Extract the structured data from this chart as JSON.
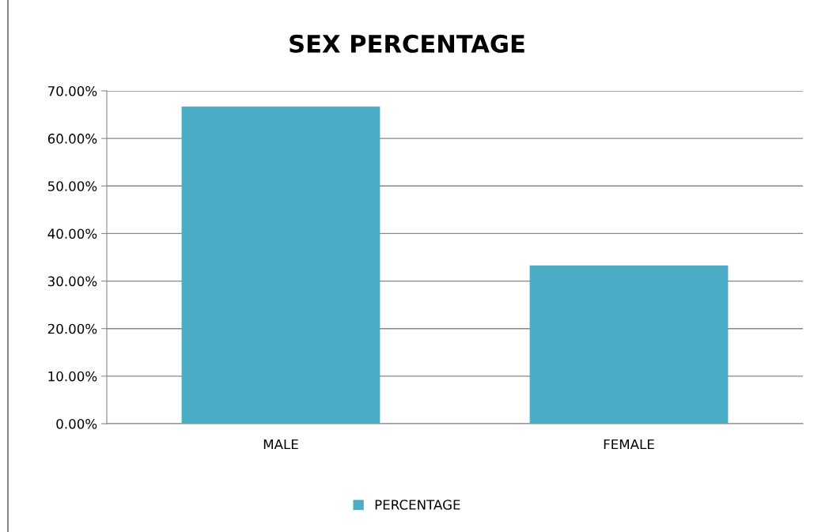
{
  "chart_data": {
    "type": "bar",
    "title": "SEX PERCENTAGE",
    "categories": [
      "MALE",
      "FEMALE"
    ],
    "series": [
      {
        "name": "PERCENTAGE",
        "color": "#4bacc6",
        "values": [
          66.7,
          33.3
        ]
      }
    ],
    "ylim": [
      0,
      70
    ],
    "yticks": [
      {
        "value": 0,
        "label": "0.00%"
      },
      {
        "value": 10,
        "label": "10.00%"
      },
      {
        "value": 20,
        "label": "20.00%"
      },
      {
        "value": 30,
        "label": "30.00%"
      },
      {
        "value": 40,
        "label": "40.00%"
      },
      {
        "value": 50,
        "label": "50.00%"
      },
      {
        "value": 60,
        "label": "60.00%"
      },
      {
        "value": 70,
        "label": "70.00%"
      }
    ],
    "grid": "y",
    "legend": "bottom"
  }
}
